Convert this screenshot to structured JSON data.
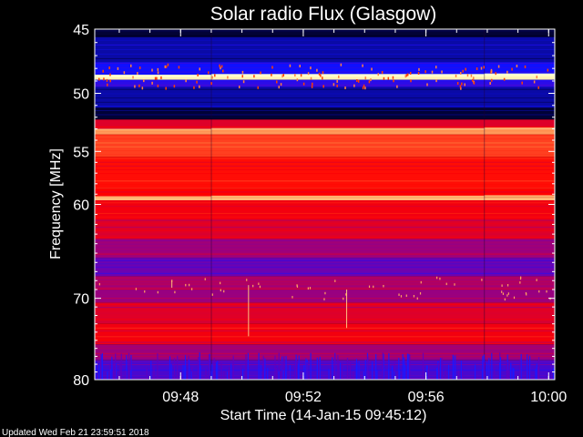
{
  "chart_data": {
    "type": "heatmap",
    "title": "Solar radio Flux (Glasgow)",
    "xlabel": "Start Time (14-Jan-15 09:45:12)",
    "ylabel": "Frequency [MHz]",
    "x_range": [
      "09:45:12",
      "10:00:12"
    ],
    "ylim": [
      45,
      80
    ],
    "y_scale": "log",
    "y_ticks": [
      45,
      50,
      55,
      60,
      70,
      80
    ],
    "x_ticks": [
      "09:48",
      "09:52",
      "09:56",
      "10:00"
    ],
    "x_tick_minutes": [
      2.8,
      6.8,
      10.8,
      14.8
    ],
    "x_span_minutes": 15.0,
    "segment_boundaries_minutes": [
      3.8,
      12.7
    ],
    "colormap": [
      "#000020",
      "#1010ff",
      "#8000a0",
      "#ff0000",
      "#ff8040",
      "#ffffc0"
    ],
    "bands": [
      {
        "from": 45.0,
        "to": 45.6,
        "level": 0.02
      },
      {
        "from": 45.6,
        "to": 47.5,
        "level": 0.12
      },
      {
        "from": 47.5,
        "to": 48.5,
        "level": 0.2
      },
      {
        "from": 48.5,
        "to": 48.9,
        "level": 0.98
      },
      {
        "from": 48.9,
        "to": 49.5,
        "level": 0.25
      },
      {
        "from": 49.5,
        "to": 51.2,
        "level": 0.12
      },
      {
        "from": 51.2,
        "to": 52.2,
        "level": 0.02
      },
      {
        "from": 52.2,
        "to": 53.0,
        "level": 0.55
      },
      {
        "from": 53.0,
        "to": 53.5,
        "level": 0.84
      },
      {
        "from": 53.5,
        "to": 55.5,
        "level": 0.7
      },
      {
        "from": 55.5,
        "to": 58.5,
        "level": 0.62
      },
      {
        "from": 58.5,
        "to": 59.3,
        "level": 0.6
      },
      {
        "from": 59.3,
        "to": 59.6,
        "level": 0.86
      },
      {
        "from": 59.6,
        "to": 61.5,
        "level": 0.58
      },
      {
        "from": 61.5,
        "to": 63.5,
        "level": 0.55
      },
      {
        "from": 63.5,
        "to": 65.5,
        "level": 0.45
      },
      {
        "from": 65.5,
        "to": 67.5,
        "level": 0.36
      },
      {
        "from": 67.5,
        "to": 69.0,
        "level": 0.48
      },
      {
        "from": 69.0,
        "to": 70.5,
        "level": 0.44
      },
      {
        "from": 70.5,
        "to": 73.0,
        "level": 0.55
      },
      {
        "from": 73.0,
        "to": 75.5,
        "level": 0.58
      },
      {
        "from": 75.5,
        "to": 77.5,
        "level": 0.45
      },
      {
        "from": 77.5,
        "to": 80.0,
        "level": 0.3
      }
    ],
    "footer": "Updated Wed Feb 21 23:59:51 2018"
  }
}
